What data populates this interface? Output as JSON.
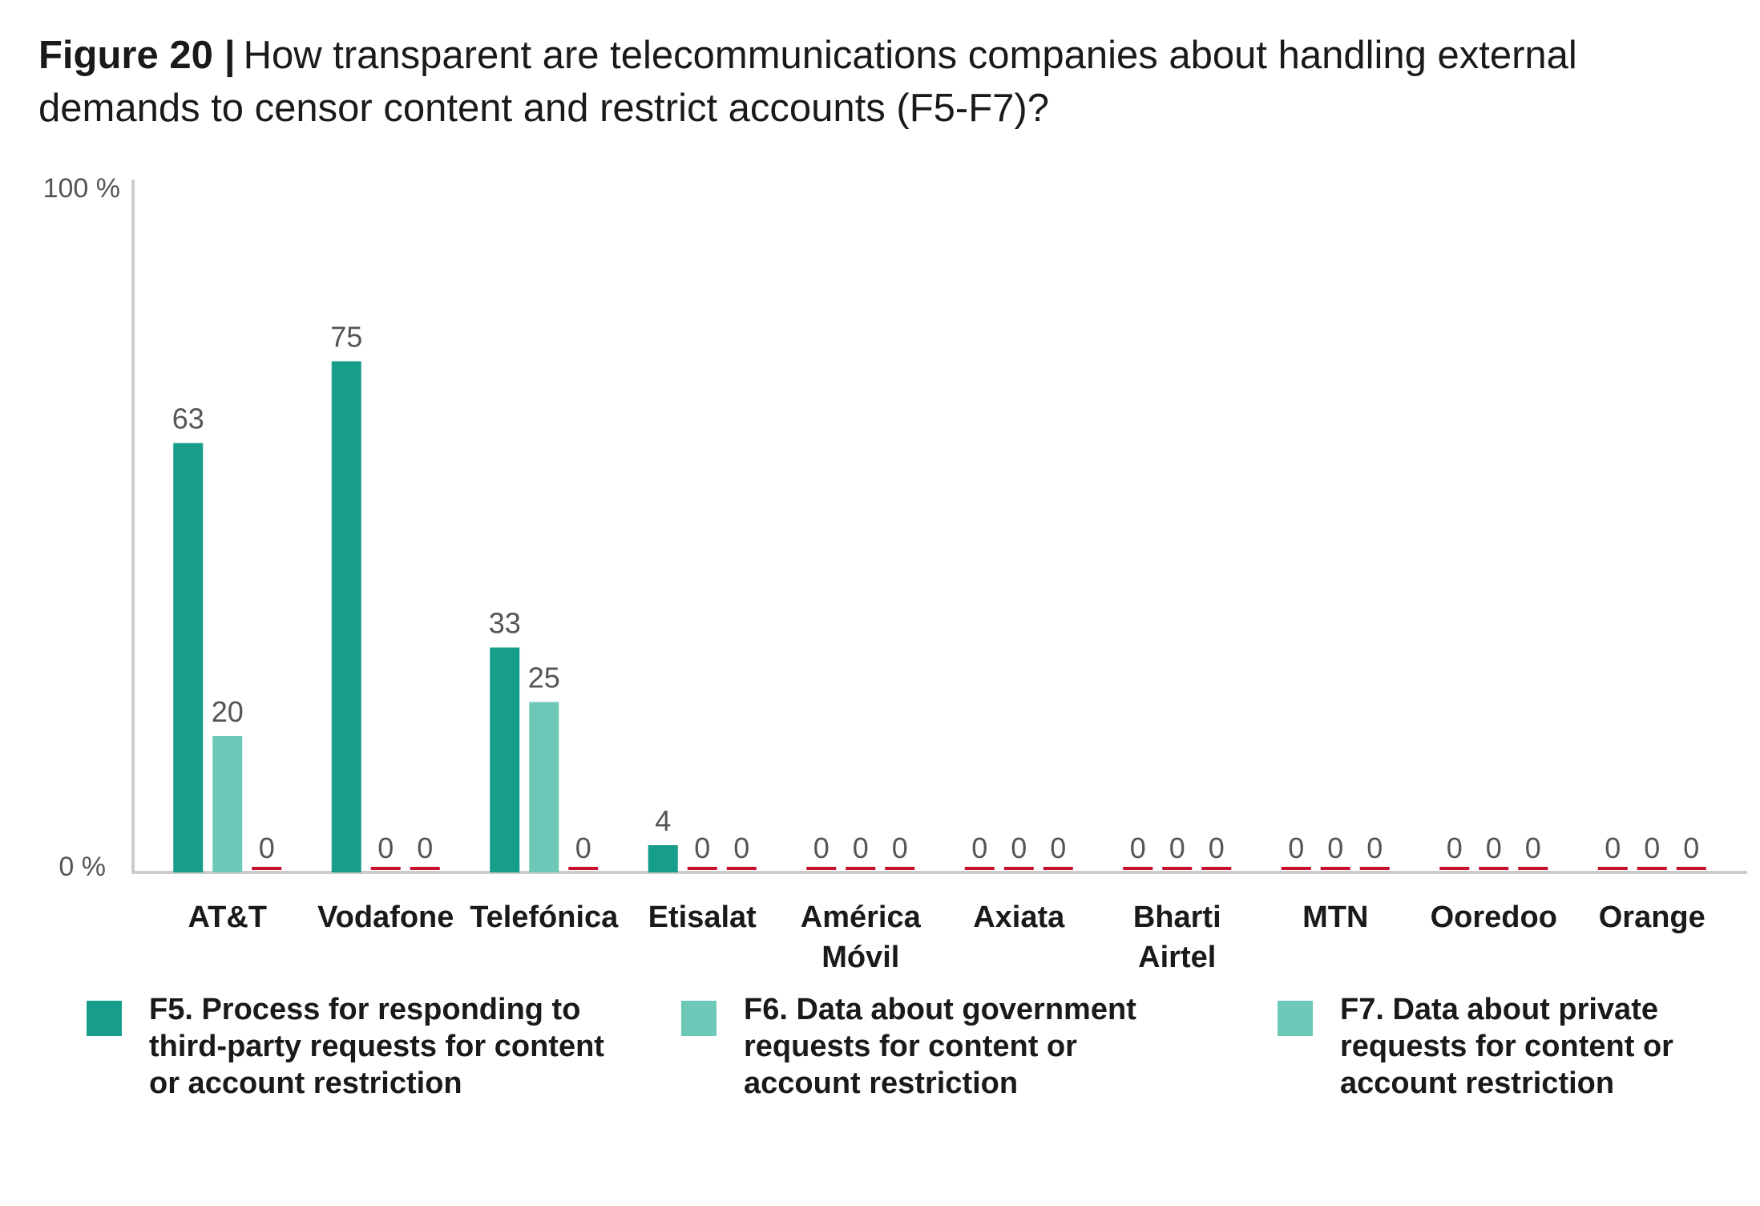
{
  "title": {
    "lead": "Figure 20",
    "separator": "|",
    "question": "How transparent are telecommunications companies about handling external demands to censor content and restrict accounts (F5-F7)?"
  },
  "chart_data": {
    "type": "bar",
    "categories": [
      "AT&T",
      "Vodafone",
      "Telefónica",
      "Etisalat",
      "América Móvil",
      "Axiata",
      "Bharti Airtel",
      "MTN",
      "Ooredoo",
      "Orange"
    ],
    "series": [
      {
        "name": "F5. Process for responding to third-party requests for content or account restriction",
        "values": [
          63,
          75,
          33,
          4,
          0,
          0,
          0,
          0,
          0,
          0
        ]
      },
      {
        "name": "F6. Data about government requests for content or account restriction",
        "values": [
          20,
          0,
          25,
          0,
          0,
          0,
          0,
          0,
          0,
          0
        ]
      },
      {
        "name": "F7. Data about private requests for content or account restriction",
        "values": [
          0,
          0,
          0,
          0,
          0,
          0,
          0,
          0,
          0,
          0
        ]
      }
    ],
    "visible_series": [
      [
        0,
        1,
        2
      ],
      [
        0,
        1,
        2
      ],
      [
        0,
        1,
        2
      ],
      [
        0,
        1,
        2
      ],
      [
        0,
        1,
        2
      ],
      [
        0,
        1,
        2
      ],
      [
        0,
        1,
        2
      ],
      [
        0,
        1,
        2
      ],
      [
        0,
        1,
        2
      ],
      [
        0,
        1,
        2
      ]
    ],
    "y_tick_labels": [
      "0 %",
      "100 %"
    ],
    "ylim": [
      0,
      100
    ],
    "grid": false,
    "legend_position": "bottom",
    "colors": {
      "F5": "#179e8a",
      "F6": "#6cc9b8",
      "F7": "#6cc9b8",
      "zero_marker": "#c8102e",
      "axis": "#cccccc",
      "value_label": "#555555"
    }
  }
}
